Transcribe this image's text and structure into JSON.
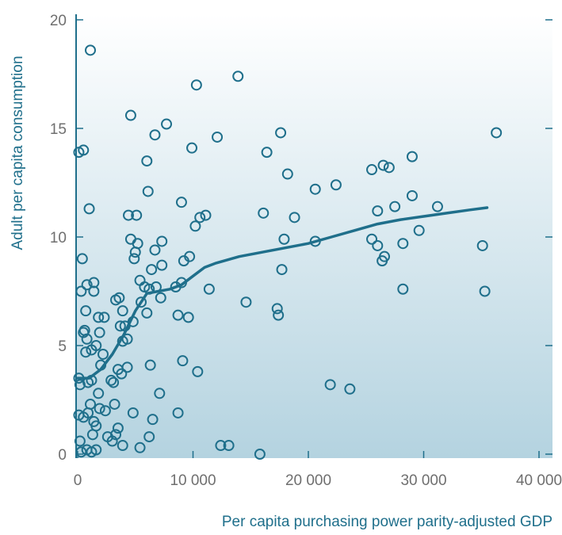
{
  "colors": {
    "accent": "#1f6f8b",
    "tick_text": "#6f6f6f",
    "bg_top": "#ffffff",
    "bg_bottom": "#b4d3e0"
  },
  "chart_data": {
    "type": "scatter",
    "title": "",
    "xlabel": "Per capita purchasing power parity-adjusted GDP",
    "ylabel": "Adult per capita consumption",
    "xlim": [
      0,
      40000
    ],
    "ylim": [
      0,
      20
    ],
    "x_ticks": [
      0,
      10000,
      20000,
      30000,
      40000
    ],
    "x_tick_labels": [
      "0",
      "10 000",
      "20 000",
      "30 000",
      "40 000"
    ],
    "y_ticks": [
      0,
      5,
      10,
      15,
      20
    ],
    "y_tick_labels": [
      "0",
      "5",
      "10",
      "15",
      "20"
    ],
    "grid": false,
    "legend": "none",
    "points": [
      [
        1100,
        18.6
      ],
      [
        13900,
        17.4
      ],
      [
        10300,
        17.0
      ],
      [
        4600,
        15.6
      ],
      [
        7700,
        15.2
      ],
      [
        6700,
        14.7
      ],
      [
        12100,
        14.6
      ],
      [
        17600,
        14.8
      ],
      [
        36300,
        14.8
      ],
      [
        100,
        13.9
      ],
      [
        500,
        14.0
      ],
      [
        9900,
        14.1
      ],
      [
        16400,
        13.9
      ],
      [
        6000,
        13.5
      ],
      [
        18200,
        12.9
      ],
      [
        25500,
        13.1
      ],
      [
        26500,
        13.3
      ],
      [
        27000,
        13.2
      ],
      [
        29000,
        13.7
      ],
      [
        22400,
        12.4
      ],
      [
        20600,
        12.2
      ],
      [
        6100,
        12.1
      ],
      [
        29000,
        11.9
      ],
      [
        1000,
        11.3
      ],
      [
        4400,
        11.0
      ],
      [
        5100,
        11.0
      ],
      [
        9000,
        11.6
      ],
      [
        10600,
        10.9
      ],
      [
        11100,
        11.0
      ],
      [
        16100,
        11.1
      ],
      [
        18800,
        10.9
      ],
      [
        26000,
        11.2
      ],
      [
        27500,
        11.4
      ],
      [
        31200,
        11.4
      ],
      [
        10200,
        10.5
      ],
      [
        29600,
        10.3
      ],
      [
        4600,
        9.9
      ],
      [
        5200,
        9.7
      ],
      [
        7300,
        9.8
      ],
      [
        17900,
        9.9
      ],
      [
        20600,
        9.8
      ],
      [
        25500,
        9.9
      ],
      [
        26000,
        9.6
      ],
      [
        28200,
        9.7
      ],
      [
        35100,
        9.6
      ],
      [
        400,
        9.0
      ],
      [
        4900,
        9.0
      ],
      [
        5000,
        9.3
      ],
      [
        6700,
        9.4
      ],
      [
        9200,
        8.9
      ],
      [
        9700,
        9.1
      ],
      [
        26400,
        8.9
      ],
      [
        26600,
        9.1
      ],
      [
        7300,
        8.7
      ],
      [
        6400,
        8.5
      ],
      [
        17700,
        8.5
      ],
      [
        1400,
        7.9
      ],
      [
        800,
        7.8
      ],
      [
        5400,
        8.0
      ],
      [
        5800,
        7.7
      ],
      [
        6200,
        7.6
      ],
      [
        6800,
        7.7
      ],
      [
        8500,
        7.7
      ],
      [
        9000,
        7.9
      ],
      [
        11400,
        7.6
      ],
      [
        28200,
        7.6
      ],
      [
        35300,
        7.5
      ],
      [
        300,
        7.5
      ],
      [
        1400,
        7.5
      ],
      [
        7200,
        7.2
      ],
      [
        3300,
        7.1
      ],
      [
        3600,
        7.2
      ],
      [
        5500,
        7.0
      ],
      [
        14600,
        7.0
      ],
      [
        17300,
        6.7
      ],
      [
        700,
        6.6
      ],
      [
        3900,
        6.6
      ],
      [
        6000,
        6.5
      ],
      [
        1800,
        6.3
      ],
      [
        2300,
        6.3
      ],
      [
        8700,
        6.4
      ],
      [
        9600,
        6.3
      ],
      [
        17400,
        6.4
      ],
      [
        3700,
        5.9
      ],
      [
        4100,
        5.9
      ],
      [
        4800,
        6.1
      ],
      [
        600,
        5.7
      ],
      [
        500,
        5.6
      ],
      [
        1900,
        5.6
      ],
      [
        800,
        5.3
      ],
      [
        3900,
        5.2
      ],
      [
        4300,
        5.3
      ],
      [
        1200,
        4.8
      ],
      [
        2200,
        4.6
      ],
      [
        700,
        4.7
      ],
      [
        1600,
        5.0
      ],
      [
        9100,
        4.3
      ],
      [
        2000,
        4.1
      ],
      [
        3500,
        3.9
      ],
      [
        4300,
        4.0
      ],
      [
        3800,
        3.7
      ],
      [
        6300,
        4.1
      ],
      [
        10400,
        3.8
      ],
      [
        100,
        3.5
      ],
      [
        1200,
        3.4
      ],
      [
        200,
        3.2
      ],
      [
        900,
        3.3
      ],
      [
        2900,
        3.4
      ],
      [
        3100,
        3.3
      ],
      [
        21900,
        3.2
      ],
      [
        23600,
        3.0
      ],
      [
        1800,
        2.8
      ],
      [
        7100,
        2.8
      ],
      [
        1100,
        2.3
      ],
      [
        3200,
        2.3
      ],
      [
        1900,
        2.1
      ],
      [
        2400,
        2.0
      ],
      [
        4800,
        1.9
      ],
      [
        8700,
        1.9
      ],
      [
        100,
        1.8
      ],
      [
        900,
        1.9
      ],
      [
        500,
        1.7
      ],
      [
        1600,
        1.3
      ],
      [
        1400,
        1.5
      ],
      [
        3500,
        1.2
      ],
      [
        6500,
        1.6
      ],
      [
        1300,
        0.9
      ],
      [
        2600,
        0.8
      ],
      [
        3000,
        0.6
      ],
      [
        6200,
        0.8
      ],
      [
        200,
        0.6
      ],
      [
        3300,
        0.9
      ],
      [
        3900,
        0.4
      ],
      [
        5400,
        0.3
      ],
      [
        12400,
        0.4
      ],
      [
        13100,
        0.4
      ],
      [
        300,
        0.1
      ],
      [
        800,
        0.2
      ],
      [
        1200,
        0.1
      ],
      [
        1600,
        0.2
      ],
      [
        15800,
        0.0
      ]
    ],
    "trend_line": {
      "x": [
        0,
        1000,
        2000,
        3000,
        4000,
        5000,
        6000,
        7000,
        8000,
        9000,
        10000,
        11000,
        12000,
        14000,
        16000,
        18000,
        20000,
        22000,
        24000,
        26000,
        28000,
        30000,
        32000,
        34000,
        35500
      ],
      "y": [
        3.5,
        3.5,
        3.9,
        4.6,
        5.5,
        6.6,
        7.4,
        7.5,
        7.6,
        7.8,
        8.2,
        8.6,
        8.8,
        9.1,
        9.3,
        9.5,
        9.7,
        10.0,
        10.3,
        10.6,
        10.8,
        10.95,
        11.1,
        11.25,
        11.35
      ]
    }
  }
}
